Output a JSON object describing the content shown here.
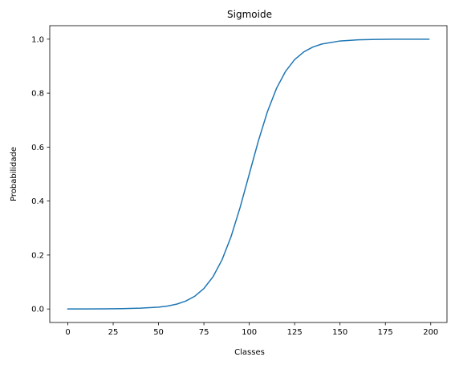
{
  "chart_data": {
    "type": "line",
    "title": "Sigmoide",
    "xlabel": "Classes",
    "ylabel": "Probabilidade",
    "xlim": [
      -9.95,
      208.95
    ],
    "ylim": [
      -0.05,
      1.05
    ],
    "xticks": [
      0,
      25,
      50,
      75,
      100,
      125,
      150,
      175,
      200
    ],
    "yticks": [
      0.0,
      0.2,
      0.4,
      0.6,
      0.8,
      1.0
    ],
    "xtick_labels": [
      "0",
      "25",
      "50",
      "75",
      "100",
      "125",
      "150",
      "175",
      "200"
    ],
    "ytick_labels": [
      "0.0",
      "0.2",
      "0.4",
      "0.6",
      "0.8",
      "1.0"
    ],
    "grid": false,
    "series": [
      {
        "color": "#1f77b4",
        "x": [
          0,
          10,
          20,
          30,
          40,
          50,
          55,
          60,
          65,
          70,
          75,
          80,
          85,
          90,
          95,
          100,
          105,
          110,
          115,
          120,
          125,
          130,
          135,
          140,
          150,
          160,
          170,
          180,
          190,
          199
        ],
        "y": [
          0.0001,
          0.0002,
          0.0005,
          0.0012,
          0.003,
          0.0067,
          0.011,
          0.018,
          0.0293,
          0.0474,
          0.0759,
          0.1192,
          0.1824,
          0.2689,
          0.3775,
          0.5,
          0.6225,
          0.7311,
          0.8176,
          0.8808,
          0.9241,
          0.9526,
          0.9707,
          0.982,
          0.9933,
          0.9975,
          0.9991,
          0.9997,
          0.9999,
          1.0
        ]
      }
    ]
  }
}
